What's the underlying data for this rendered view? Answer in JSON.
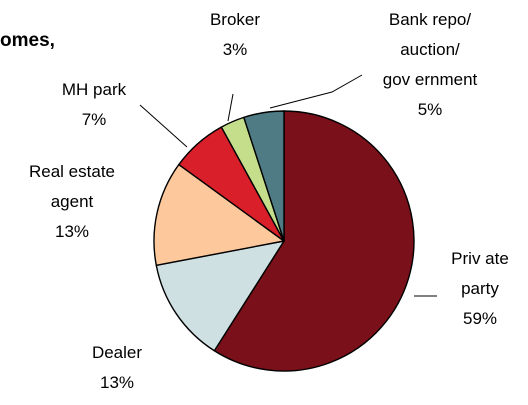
{
  "chart_data": {
    "type": "pie",
    "title": "omes,",
    "slices": [
      {
        "label_lines": [
          "Priv ate",
          "party",
          "59%"
        ],
        "value": 59,
        "color": "#7a1019"
      },
      {
        "label_lines": [
          "Dealer",
          "13%"
        ],
        "value": 13,
        "color": "#cfe0e3"
      },
      {
        "label_lines": [
          "Real estate",
          "agent",
          "13%"
        ],
        "value": 13,
        "color": "#fdc99c"
      },
      {
        "label_lines": [
          "MH park",
          "7%"
        ],
        "value": 7,
        "color": "#d81f2a"
      },
      {
        "label_lines": [
          "Broker",
          "3%"
        ],
        "value": 3,
        "color": "#c5de8c"
      },
      {
        "label_lines": [
          "Bank repo/",
          "auction/",
          "gov ernment",
          "5%"
        ],
        "value": 5,
        "color": "#4f7b84"
      }
    ],
    "slice_border_color": "#000000",
    "leader_line_color": "#000000"
  }
}
